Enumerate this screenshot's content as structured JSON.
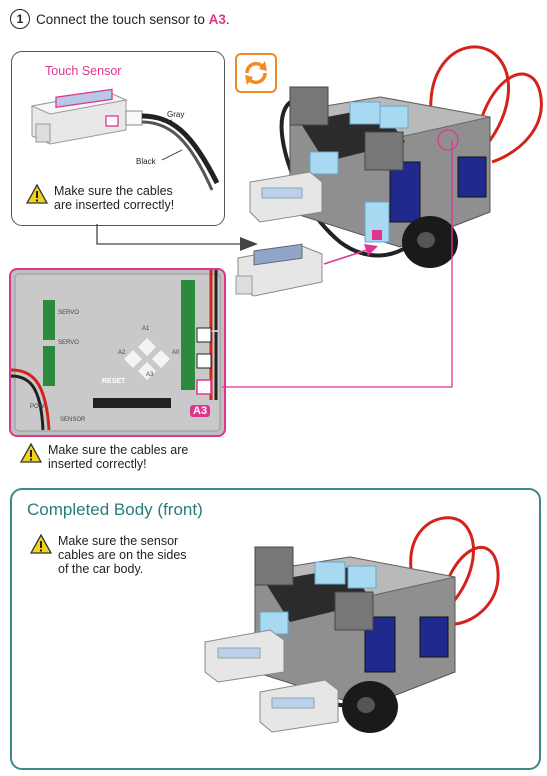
{
  "step": {
    "number": "1",
    "text": "Connect the touch sensor to ",
    "pin": "A3"
  },
  "sensor_panel": {
    "label": "Touch Sensor",
    "cable_gray": "Gray",
    "cable_black": "Black",
    "warning": [
      "Make sure the cables",
      "are inserted correctly!"
    ]
  },
  "rotate_icon": "rotate-arrows-icon",
  "board_panel": {
    "pin_label": "A3",
    "silk": [
      "SERVO",
      "SERVO",
      "RESET",
      "SENSOR",
      "A1",
      "A2",
      "A3",
      "A0",
      "POW"
    ],
    "warning": [
      "Make sure the cables are",
      "inserted correctly!"
    ]
  },
  "completed": {
    "title": "Completed Body (front)",
    "warning": [
      "Make sure the sensor",
      "cables are on the sides",
      "of the car body."
    ]
  },
  "colors": {
    "accent_pink": "#e0358f",
    "teal": "#3b8a86",
    "orange": "#f08a24",
    "light_blue": "#a9d8f2",
    "navy": "#1f2a8c"
  }
}
